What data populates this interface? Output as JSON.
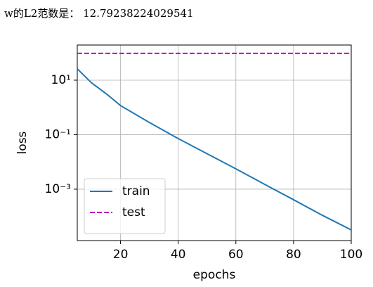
{
  "output_text": "w的L2范数是： 12.79238224029541",
  "chart_data": {
    "type": "line",
    "xlabel": "epochs",
    "ylabel": "loss",
    "x": [
      5,
      10,
      15,
      20,
      30,
      40,
      50,
      60,
      70,
      80,
      90,
      100
    ],
    "series": [
      {
        "name": "train",
        "color": "#1f77b4",
        "linestyle": "solid",
        "values": [
          26,
          7.9,
          3.2,
          1.17,
          0.28,
          0.072,
          0.02,
          0.0056,
          0.0015,
          0.00041,
          0.00011,
          3.2e-05
        ]
      },
      {
        "name": "test",
        "color": "#bf00bf",
        "linestyle": "dashed",
        "values": [
          96,
          96,
          96,
          96,
          96,
          96,
          96,
          96,
          96,
          96,
          96,
          96
        ]
      }
    ],
    "xlim": [
      5,
      100
    ],
    "xticks": [
      20,
      40,
      60,
      80,
      100
    ],
    "ylim": [
      1.3e-05,
      195
    ],
    "yscale": "log",
    "yticks": [
      {
        "value": 10,
        "label": "10¹"
      },
      {
        "value": 0.1,
        "label": "10⁻¹"
      },
      {
        "value": 0.001,
        "label": "10⁻³"
      }
    ],
    "grid": true,
    "legend": "lower left"
  }
}
